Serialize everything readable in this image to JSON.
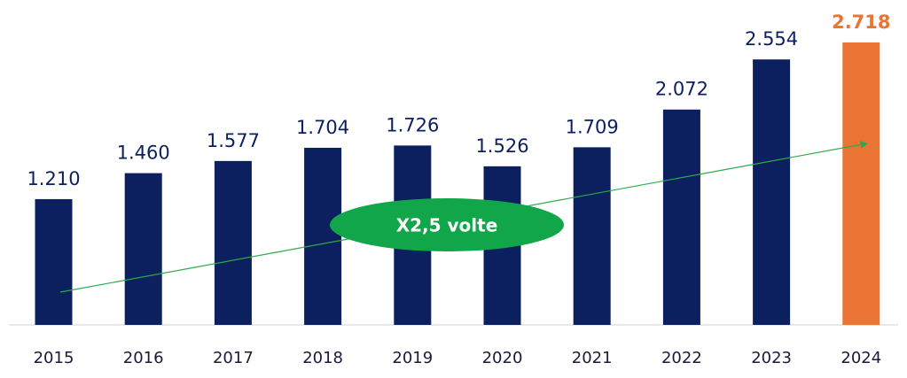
{
  "chart_data": {
    "type": "bar",
    "categories": [
      "2015",
      "2016",
      "2017",
      "2018",
      "2019",
      "2020",
      "2021",
      "2022",
      "2023",
      "2024"
    ],
    "values": [
      1210,
      1460,
      1577,
      1704,
      1726,
      1526,
      1709,
      2072,
      2554,
      2718
    ],
    "value_labels": [
      "1.210",
      "1.460",
      "1.577",
      "1.704",
      "1.726",
      "1.526",
      "1.709",
      "2.072",
      "2.554",
      "2.718"
    ],
    "colors": [
      "#0c1f5e",
      "#0c1f5e",
      "#0c1f5e",
      "#0c1f5e",
      "#0c1f5e",
      "#0c1f5e",
      "#0c1f5e",
      "#0c1f5e",
      "#0c1f5e",
      "#ea7433"
    ],
    "annotation": "X2,5 volte"
  }
}
